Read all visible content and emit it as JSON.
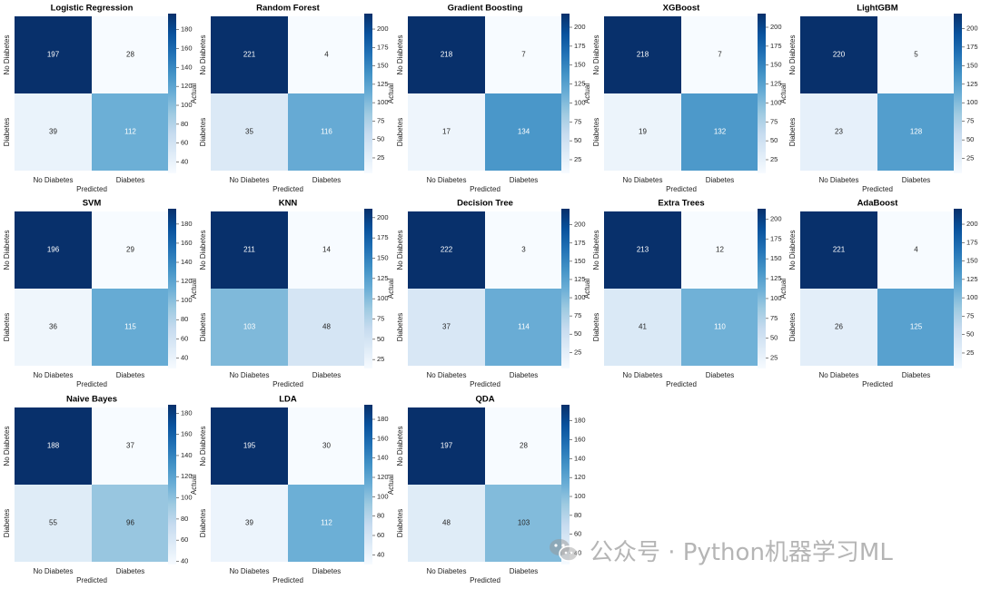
{
  "chart_data": [
    {
      "type": "heatmap",
      "title": "Logistic Regression",
      "matrix": [
        [
          197,
          28
        ],
        [
          39,
          112
        ]
      ],
      "cbar_ticks": [
        40,
        60,
        80,
        100,
        120,
        140,
        160,
        180
      ]
    },
    {
      "type": "heatmap",
      "title": "Random Forest",
      "matrix": [
        [
          221,
          4
        ],
        [
          35,
          116
        ]
      ],
      "cbar_ticks": [
        25,
        50,
        75,
        100,
        125,
        150,
        175,
        200
      ]
    },
    {
      "type": "heatmap",
      "title": "Gradient Boosting",
      "matrix": [
        [
          218,
          7
        ],
        [
          17,
          134
        ]
      ],
      "cbar_ticks": [
        25,
        50,
        75,
        100,
        125,
        150,
        175,
        200
      ]
    },
    {
      "type": "heatmap",
      "title": "XGBoost",
      "matrix": [
        [
          218,
          7
        ],
        [
          19,
          132
        ]
      ],
      "cbar_ticks": [
        25,
        50,
        75,
        100,
        125,
        150,
        175,
        200
      ]
    },
    {
      "type": "heatmap",
      "title": "LightGBM",
      "matrix": [
        [
          220,
          5
        ],
        [
          23,
          128
        ]
      ],
      "cbar_ticks": [
        25,
        50,
        75,
        100,
        125,
        150,
        175,
        200
      ]
    },
    {
      "type": "heatmap",
      "title": "SVM",
      "matrix": [
        [
          196,
          29
        ],
        [
          36,
          115
        ]
      ],
      "cbar_ticks": [
        40,
        60,
        80,
        100,
        120,
        140,
        160,
        180
      ]
    },
    {
      "type": "heatmap",
      "title": "KNN",
      "matrix": [
        [
          211,
          14
        ],
        [
          103,
          48
        ]
      ],
      "cbar_ticks": [
        25,
        50,
        75,
        100,
        125,
        150,
        175,
        200
      ]
    },
    {
      "type": "heatmap",
      "title": "Decision Tree",
      "matrix": [
        [
          222,
          3
        ],
        [
          37,
          114
        ]
      ],
      "cbar_ticks": [
        25,
        50,
        75,
        100,
        125,
        150,
        175,
        200
      ]
    },
    {
      "type": "heatmap",
      "title": "Extra Trees",
      "matrix": [
        [
          213,
          12
        ],
        [
          41,
          110
        ]
      ],
      "cbar_ticks": [
        25,
        50,
        75,
        100,
        125,
        150,
        175,
        200
      ]
    },
    {
      "type": "heatmap",
      "title": "AdaBoost",
      "matrix": [
        [
          221,
          4
        ],
        [
          26,
          125
        ]
      ],
      "cbar_ticks": [
        25,
        50,
        75,
        100,
        125,
        150,
        175,
        200
      ]
    },
    {
      "type": "heatmap",
      "title": "Naive Bayes",
      "matrix": [
        [
          188,
          37
        ],
        [
          55,
          96
        ]
      ],
      "cbar_ticks": [
        40,
        60,
        80,
        100,
        120,
        140,
        160,
        180
      ]
    },
    {
      "type": "heatmap",
      "title": "LDA",
      "matrix": [
        [
          195,
          30
        ],
        [
          39,
          112
        ]
      ],
      "cbar_ticks": [
        40,
        60,
        80,
        100,
        120,
        140,
        160,
        180
      ]
    },
    {
      "type": "heatmap",
      "title": "QDA",
      "matrix": [
        [
          197,
          28
        ],
        [
          48,
          103
        ]
      ],
      "cbar_ticks": [
        40,
        60,
        80,
        100,
        120,
        140,
        160,
        180
      ]
    }
  ],
  "labels": {
    "categories": [
      "No Diabetes",
      "Diabetes"
    ],
    "xlabel": "Predicted",
    "ylabel": "Actual"
  },
  "colormap": {
    "name": "Blues",
    "stops": [
      "#f7fbff",
      "#deebf7",
      "#c6dbef",
      "#9ecae1",
      "#6baed6",
      "#4292c6",
      "#2171b5",
      "#08519c",
      "#08306b"
    ]
  },
  "watermark": "公众号 · Python机器学习ML"
}
